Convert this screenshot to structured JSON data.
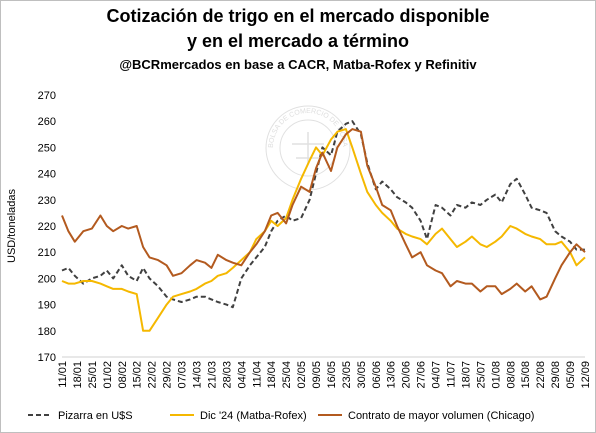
{
  "chart_data": {
    "type": "line",
    "title": "Cotización de trigo en el mercado disponible",
    "title_line2": "y en el mercado a término",
    "subtitle": "@BCRmercados en base a CACR, Matba-Rofex y Refinitiv",
    "ylabel": "USD/toneladas",
    "xlabel": "",
    "ylim": [
      170,
      270
    ],
    "yticks": [
      170,
      180,
      190,
      200,
      210,
      220,
      230,
      240,
      250,
      260,
      270
    ],
    "xlim": [
      0,
      245
    ],
    "x_tick_labels": [
      "11/01",
      "18/01",
      "25/01",
      "01/02",
      "08/02",
      "15/02",
      "22/02",
      "29/02",
      "07/03",
      "14/03",
      "21/03",
      "28/03",
      "04/04",
      "11/04",
      "18/04",
      "25/04",
      "02/05",
      "09/05",
      "16/05",
      "23/05",
      "30/05",
      "06/06",
      "13/06",
      "20/06",
      "27/06",
      "04/07",
      "11/07",
      "18/07",
      "25/07",
      "01/08",
      "08/08",
      "15/08",
      "22/08",
      "29/08",
      "05/09",
      "12/09"
    ],
    "x_tick_positions": [
      0,
      7,
      14,
      21,
      28,
      35,
      42,
      49,
      56,
      63,
      70,
      77,
      84,
      91,
      98,
      105,
      112,
      119,
      126,
      133,
      140,
      147,
      154,
      161,
      168,
      175,
      182,
      189,
      196,
      203,
      210,
      217,
      224,
      231,
      238,
      245
    ],
    "grid": false,
    "legend_position": "bottom",
    "watermark": "BOLSA DE COMERCIO DE ROSARIO",
    "series": [
      {
        "name": "Pizarra en U$S",
        "color": "#404040",
        "style": "dashed",
        "x": [
          0,
          3,
          6,
          10,
          14,
          18,
          21,
          24,
          28,
          31,
          35,
          38,
          41,
          45,
          49,
          52,
          56,
          60,
          63,
          67,
          70,
          73,
          77,
          80,
          84,
          88,
          91,
          95,
          98,
          101,
          105,
          108,
          112,
          116,
          119,
          122,
          126,
          129,
          133,
          136,
          140,
          143,
          147,
          150,
          154,
          157,
          161,
          164,
          168,
          171,
          175,
          178,
          182,
          185,
          189,
          192,
          196,
          199,
          203,
          206,
          210,
          213,
          217,
          220,
          224,
          227,
          231,
          234,
          238,
          241,
          245
        ],
        "y": [
          203,
          204,
          201,
          198,
          200,
          201,
          203,
          200,
          205,
          201,
          199,
          204,
          200,
          197,
          193,
          192,
          191,
          192,
          193,
          193,
          192,
          191,
          190,
          189,
          200,
          205,
          208,
          212,
          218,
          222,
          224,
          222,
          223,
          230,
          240,
          250,
          247,
          256,
          259,
          260,
          255,
          244,
          234,
          237,
          234,
          231,
          229,
          227,
          222,
          215,
          228,
          227,
          224,
          228,
          227,
          229,
          228,
          230,
          232,
          229,
          236,
          238,
          232,
          227,
          226,
          225,
          218,
          216,
          214,
          211,
          211
        ]
      },
      {
        "name": "Dic '24 (Matba-Rofex)",
        "color": "#f5b800",
        "style": "solid",
        "x": [
          0,
          3,
          6,
          10,
          14,
          18,
          21,
          24,
          28,
          31,
          35,
          38,
          41,
          45,
          49,
          52,
          56,
          60,
          63,
          67,
          70,
          73,
          77,
          80,
          84,
          88,
          91,
          95,
          98,
          101,
          105,
          108,
          112,
          116,
          119,
          122,
          126,
          129,
          133,
          136,
          140,
          143,
          147,
          150,
          154,
          157,
          161,
          164,
          168,
          171,
          175,
          178,
          182,
          185,
          189,
          192,
          196,
          199,
          203,
          206,
          210,
          213,
          217,
          220,
          224,
          227,
          231,
          234,
          238,
          241,
          245
        ],
        "y": [
          199,
          198,
          198,
          199,
          199,
          198,
          197,
          196,
          196,
          195,
          194,
          180,
          180,
          185,
          190,
          193,
          194,
          195,
          196,
          198,
          199,
          201,
          202,
          204,
          207,
          210,
          215,
          218,
          222,
          220,
          223,
          230,
          238,
          245,
          250,
          247,
          253,
          256,
          257,
          250,
          240,
          233,
          228,
          225,
          222,
          219,
          217,
          216,
          215,
          213,
          217,
          219,
          215,
          212,
          214,
          216,
          213,
          212,
          214,
          216,
          220,
          219,
          217,
          216,
          215,
          213,
          213,
          214,
          210,
          205,
          208
        ]
      },
      {
        "name": "Contrato de mayor volumen (Chicago)",
        "color": "#b35a1f",
        "style": "solid",
        "x": [
          0,
          3,
          6,
          10,
          14,
          18,
          21,
          24,
          28,
          31,
          35,
          38,
          41,
          45,
          49,
          52,
          56,
          60,
          63,
          67,
          70,
          73,
          77,
          80,
          84,
          88,
          91,
          95,
          98,
          101,
          105,
          108,
          112,
          116,
          119,
          122,
          126,
          129,
          133,
          136,
          140,
          143,
          147,
          150,
          154,
          157,
          161,
          164,
          168,
          171,
          175,
          178,
          182,
          185,
          189,
          192,
          196,
          199,
          203,
          206,
          210,
          213,
          217,
          220,
          224,
          227,
          231,
          234,
          238,
          241,
          245
        ],
        "y": [
          224,
          218,
          214,
          218,
          219,
          224,
          220,
          218,
          220,
          219,
          220,
          212,
          208,
          207,
          205,
          201,
          202,
          205,
          207,
          206,
          204,
          209,
          207,
          206,
          205,
          210,
          213,
          218,
          224,
          225,
          221,
          228,
          235,
          233,
          242,
          248,
          241,
          250,
          255,
          257,
          256,
          243,
          235,
          228,
          226,
          220,
          213,
          208,
          210,
          205,
          203,
          202,
          197,
          199,
          198,
          198,
          195,
          197,
          197,
          194,
          196,
          198,
          195,
          197,
          192,
          193,
          200,
          205,
          210,
          213,
          210
        ]
      }
    ]
  }
}
